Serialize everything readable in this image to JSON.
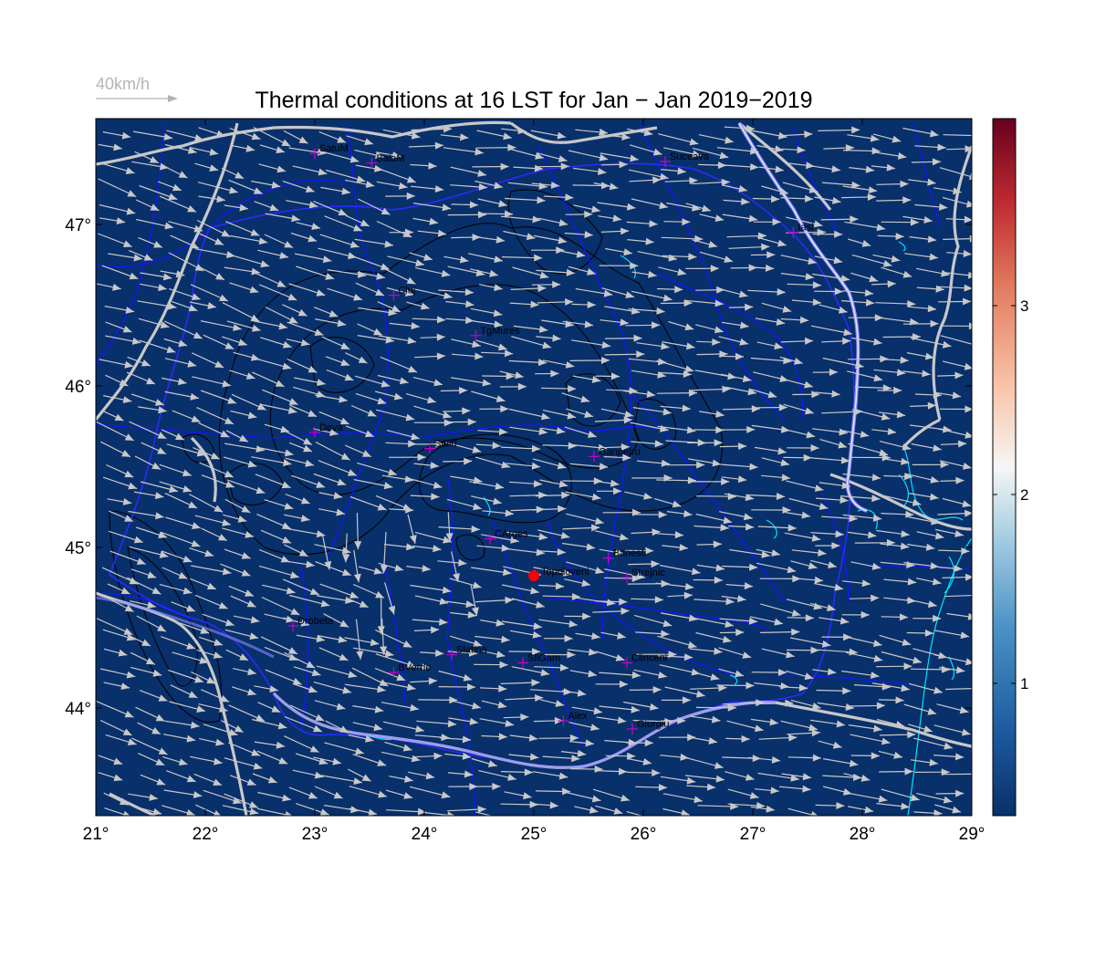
{
  "title": "Thermal conditions at 16 LST for Jan − Jan  2019−2019",
  "wind_scale_label": "40km/h",
  "x_ticks": [
    "21°",
    "22°",
    "23°",
    "24°",
    "25°",
    "26°",
    "27°",
    "28°",
    "29°"
  ],
  "y_ticks": [
    "44°",
    "45°",
    "46°",
    "47°"
  ],
  "colorbar_ticks": [
    "1",
    "2",
    "3"
  ],
  "colors": {
    "map_fill": "#08306b",
    "contour": "#000000",
    "rivers": "#0000ff",
    "lakes": "#00e5ff",
    "borders": "#c8c8c8",
    "wind_arrows": "#c8c8c8",
    "stations": "#cc00cc",
    "highlight": "#ff0000"
  },
  "highlight_station": {
    "name": "Topoloveni",
    "lon": 25.0,
    "lat": 44.82
  },
  "stations": [
    {
      "name": "SatuM",
      "lon": 23.0,
      "lat": 47.44
    },
    {
      "name": "BaiaM",
      "lon": 23.52,
      "lat": 47.38
    },
    {
      "name": "Suceava",
      "lon": 26.2,
      "lat": 47.39
    },
    {
      "name": "Iasi",
      "lon": 27.37,
      "lat": 46.95
    },
    {
      "name": "Cluj",
      "lon": 23.72,
      "lat": 46.56
    },
    {
      "name": "TgMures",
      "lon": 24.47,
      "lat": 46.31
    },
    {
      "name": "Deva",
      "lon": 23.0,
      "lat": 45.71
    },
    {
      "name": "Sibiu",
      "lon": 24.05,
      "lat": 45.61
    },
    {
      "name": "Ganpetru",
      "lon": 25.55,
      "lat": 45.56
    },
    {
      "name": "CArges",
      "lon": 24.6,
      "lat": 45.05
    },
    {
      "name": "Banesti",
      "lon": 25.68,
      "lat": 44.93
    },
    {
      "name": "Strejnic",
      "lon": 25.85,
      "lat": 44.81
    },
    {
      "name": "Drobeta",
      "lon": 22.8,
      "lat": 44.51
    },
    {
      "name": "Slatina",
      "lon": 24.25,
      "lat": 44.33
    },
    {
      "name": "SllGam",
      "lon": 24.9,
      "lat": 44.28
    },
    {
      "name": "Clinceni",
      "lon": 25.85,
      "lat": 44.28
    },
    {
      "name": "BVerde",
      "lon": 23.72,
      "lat": 44.22
    },
    {
      "name": "Alex",
      "lon": 25.27,
      "lat": 43.92
    },
    {
      "name": "Giurgiu",
      "lon": 25.9,
      "lat": 43.87
    }
  ]
}
